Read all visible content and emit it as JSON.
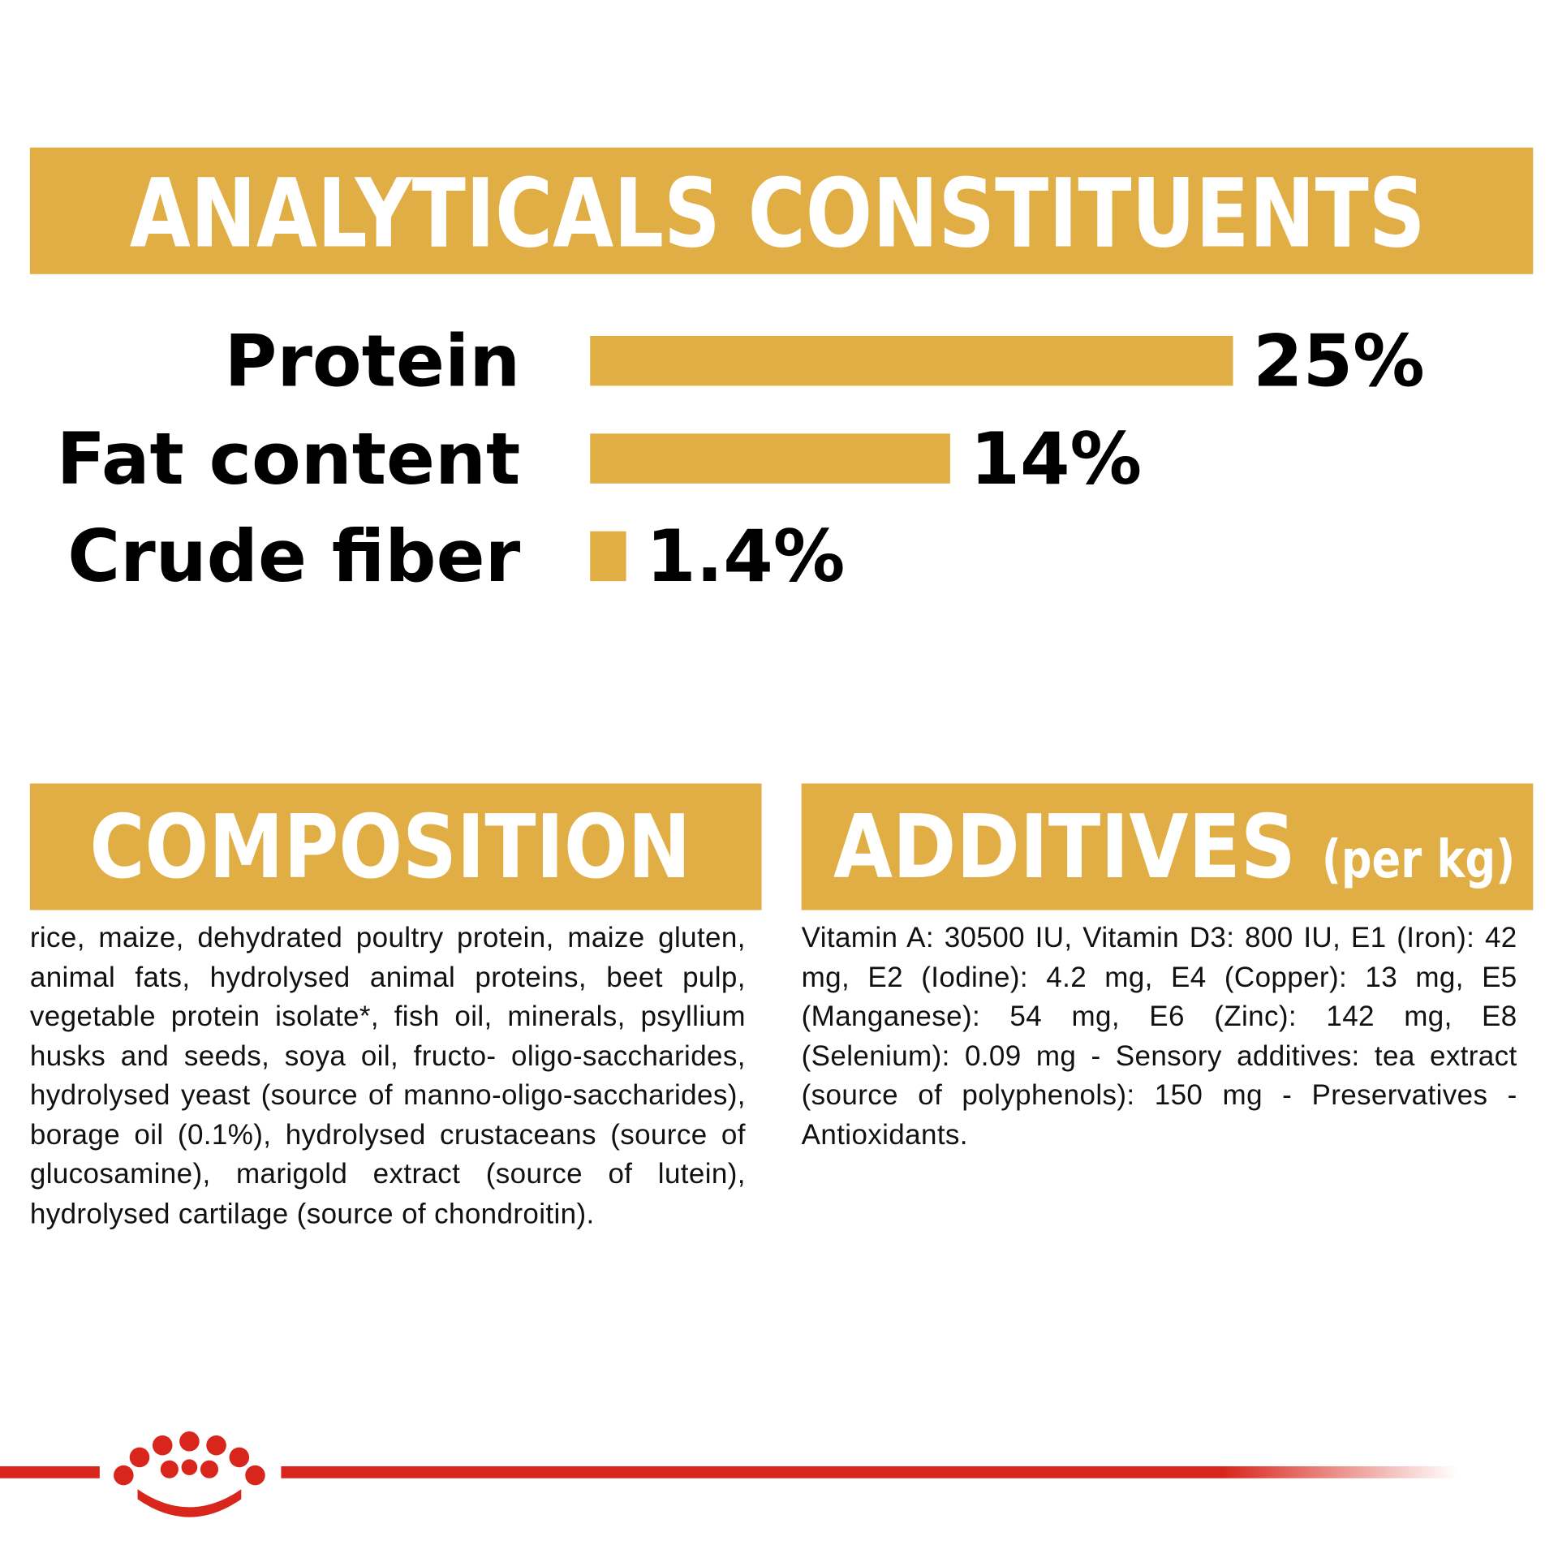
{
  "header": {
    "title": "ANALYTICALS CONSTITUENTS"
  },
  "chart_data": {
    "type": "bar",
    "orientation": "horizontal",
    "categories": [
      "Protein",
      "Fat content",
      "Crude fiber"
    ],
    "values": [
      25,
      14,
      1.4
    ],
    "value_labels": [
      "25%",
      "14%",
      "1.4%"
    ],
    "color": "#e0ae45"
  },
  "composition": {
    "title": "COMPOSITION",
    "text": "rice, maize, dehydrated poultry protein, maize gluten, animal fats, hydrolysed animal proteins, beet pulp, vegetable protein isolate*, fish oil, minerals, psyllium husks and seeds, soya oil, fructo- oligo-saccharides, hydrolysed yeast (source of manno-oligo-saccharides), borage oil (0.1%), hydrolysed crustaceans (source of glucosamine), marigold extract (source of lutein), hydrolysed cartilage (source of chondroitin)."
  },
  "additives": {
    "title": "ADDITIVES",
    "unit": "(per kg)",
    "text": "Vitamin A: 30500 IU, Vitamin D3: 800 IU, E1 (Iron): 42 mg, E2 (Iodine): 4.2 mg, E4 (Copper): 13 mg, E5 (Manganese): 54 mg, E6 (Zinc): 142 mg, E8 (Selenium): 0.09 mg - Sensory additives: tea extract (source of polyphenols): 150 mg - Preservatives - Antioxidants."
  }
}
